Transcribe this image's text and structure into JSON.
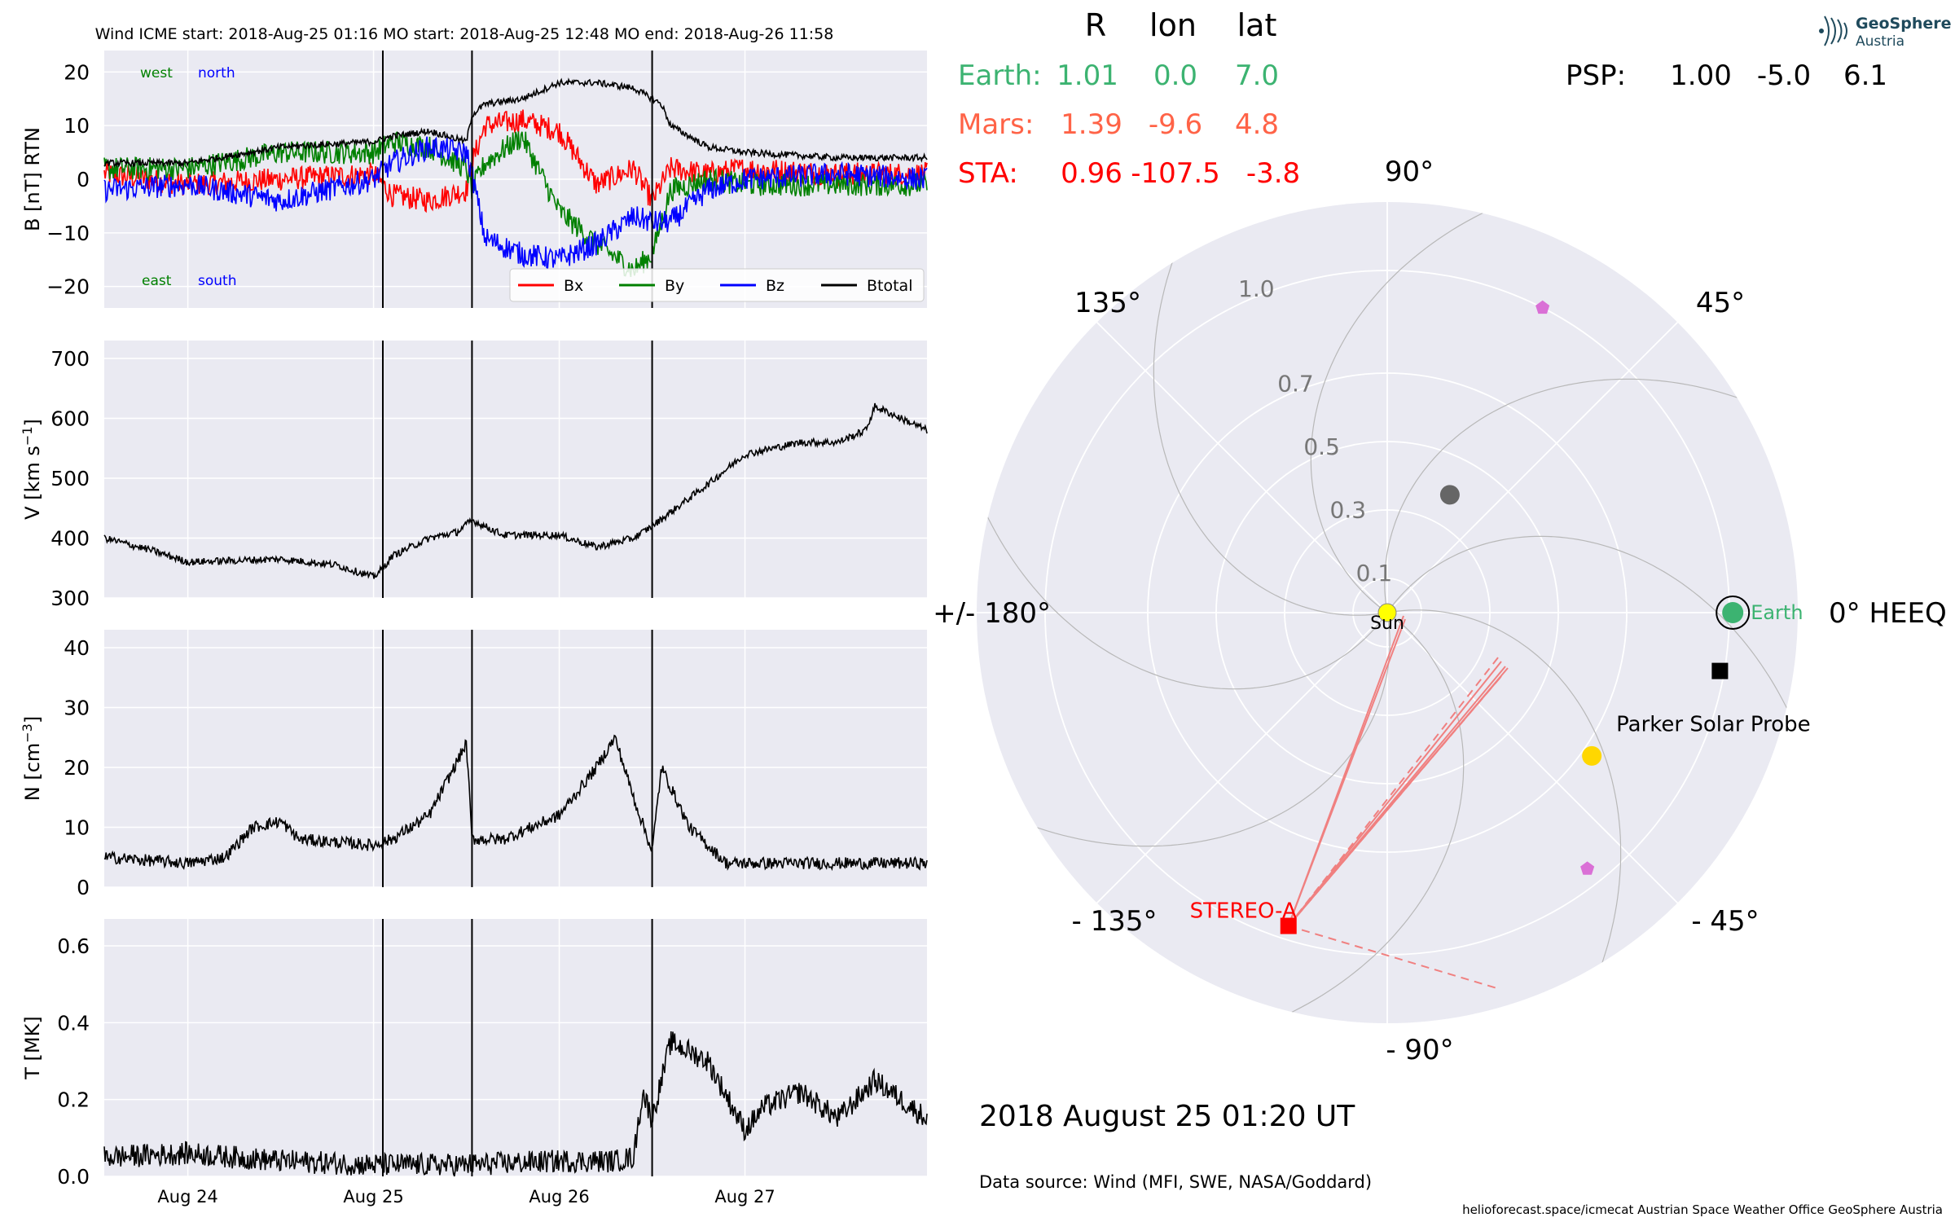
{
  "timeseries": {
    "header": "Wind    ICME start: 2018-Aug-25 01:16   MO start: 2018-Aug-25 12:48   MO end: 2018-Aug-26 11:58",
    "x_ticks": [
      "Aug 24",
      "Aug 25",
      "Aug 26",
      "Aug 27"
    ],
    "panel_b_notes": {
      "west": "west",
      "north": "north",
      "east": "east",
      "south": "south"
    },
    "colors": {
      "bx": "#ff0000",
      "by": "#008000",
      "bz": "#0000ff",
      "btotal": "#000000",
      "plot_bg": "#eaeaf2"
    }
  },
  "chart_data": [
    {
      "type": "line",
      "ylabel": "B [nT] RTN",
      "ylim": [
        -24,
        24
      ],
      "yticks": [
        "20",
        "10",
        "0",
        "−10",
        "−20"
      ],
      "xlim_days": [
        23.55,
        27.98
      ],
      "events": {
        "icme_start": 25.05,
        "mo_start": 25.53,
        "mo_end": 26.5
      },
      "series": [
        {
          "name": "Bx",
          "color": "#ff0000",
          "x": [
            23.55,
            24.0,
            24.5,
            25.0,
            25.1,
            25.3,
            25.5,
            25.53,
            25.6,
            25.8,
            26.0,
            26.2,
            26.4,
            26.5,
            26.6,
            26.8,
            27.0,
            27.5,
            27.98
          ],
          "y": [
            1,
            -1,
            0,
            1,
            -3,
            -4,
            -2,
            3,
            10,
            11,
            9,
            -1,
            2,
            -4,
            2,
            1,
            2,
            1,
            1
          ]
        },
        {
          "name": "By",
          "color": "#008000",
          "x": [
            23.55,
            24.0,
            24.5,
            25.0,
            25.1,
            25.3,
            25.5,
            25.53,
            25.6,
            25.8,
            26.0,
            26.2,
            26.4,
            26.5,
            26.6,
            26.8,
            27.0,
            27.5,
            27.98
          ],
          "y": [
            2,
            2,
            5,
            5,
            7,
            6,
            2,
            -2,
            3,
            8,
            -6,
            -12,
            -17,
            -14,
            -2,
            0,
            -1,
            -1,
            -1
          ]
        },
        {
          "name": "Bz",
          "color": "#0000ff",
          "x": [
            23.55,
            24.0,
            24.5,
            25.0,
            25.1,
            25.3,
            25.5,
            25.53,
            25.6,
            25.8,
            26.0,
            26.2,
            26.4,
            26.5,
            26.6,
            26.8,
            27.0,
            27.5,
            27.98
          ],
          "y": [
            -2,
            -1,
            -4,
            0,
            3,
            6,
            5,
            1,
            -11,
            -14,
            -15,
            -12,
            -7,
            -8,
            -8,
            -2,
            0,
            1,
            0
          ]
        },
        {
          "name": "Btotal",
          "color": "#000000",
          "x": [
            23.55,
            24.0,
            24.5,
            25.0,
            25.1,
            25.3,
            25.5,
            25.53,
            25.6,
            25.8,
            26.0,
            26.2,
            26.4,
            26.5,
            26.55,
            26.6,
            26.8,
            27.0,
            27.5,
            27.98
          ],
          "y": [
            3,
            3,
            6,
            7,
            8,
            9,
            7,
            12,
            14,
            15,
            18,
            18,
            17,
            15,
            14,
            10,
            6,
            5,
            4,
            4
          ]
        }
      ]
    },
    {
      "type": "line",
      "ylabel": "V [km s",
      "ylabel_sup": "−1",
      "ylabel_end": "]",
      "ylim": [
        300,
        730
      ],
      "yticks": [
        "700",
        "600",
        "500",
        "400",
        "300"
      ],
      "series": [
        {
          "name": "V",
          "color": "#000000",
          "x": [
            23.55,
            23.8,
            24.0,
            24.5,
            24.8,
            25.0,
            25.05,
            25.1,
            25.3,
            25.45,
            25.53,
            25.7,
            26.0,
            26.2,
            26.4,
            26.5,
            26.8,
            27.0,
            27.3,
            27.5,
            27.65,
            27.7,
            27.98
          ],
          "y": [
            400,
            380,
            360,
            365,
            355,
            335,
            350,
            370,
            400,
            410,
            430,
            405,
            405,
            385,
            400,
            420,
            490,
            540,
            560,
            560,
            580,
            620,
            580
          ]
        }
      ]
    },
    {
      "type": "line",
      "ylabel": "N [cm",
      "ylabel_sup": "−3",
      "ylabel_end": "]",
      "ylim": [
        0,
        43
      ],
      "yticks": [
        "40",
        "30",
        "20",
        "10",
        "0"
      ],
      "series": [
        {
          "name": "N",
          "color": "#000000",
          "x": [
            23.55,
            24.0,
            24.2,
            24.35,
            24.5,
            24.6,
            25.0,
            25.1,
            25.3,
            25.4,
            25.5,
            25.53,
            25.7,
            26.0,
            26.2,
            26.3,
            26.4,
            26.5,
            26.55,
            26.7,
            26.9,
            27.2,
            27.5,
            27.98
          ],
          "y": [
            5,
            4,
            5,
            10,
            11,
            8,
            7,
            8,
            12,
            18,
            24,
            8,
            8,
            12,
            20,
            25,
            15,
            6,
            20,
            10,
            4,
            4,
            4,
            4
          ]
        }
      ]
    },
    {
      "type": "line",
      "ylabel": "T [MK]",
      "ylim": [
        0,
        0.67
      ],
      "yticks": [
        "0.6",
        "0.4",
        "0.2",
        "0.0"
      ],
      "series": [
        {
          "name": "T",
          "color": "#000000",
          "x": [
            23.55,
            24.0,
            24.5,
            25.0,
            25.5,
            26.0,
            26.3,
            26.4,
            26.45,
            26.5,
            26.6,
            26.8,
            27.0,
            27.1,
            27.3,
            27.5,
            27.7,
            27.98
          ],
          "y": [
            0.05,
            0.06,
            0.04,
            0.03,
            0.03,
            0.04,
            0.04,
            0.05,
            0.22,
            0.15,
            0.35,
            0.3,
            0.12,
            0.18,
            0.22,
            0.15,
            0.25,
            0.15
          ]
        }
      ]
    },
    {
      "type": "scatter",
      "subtype": "polar",
      "angle_labels": [
        "90°",
        "45°",
        "0° HEEQ",
        "- 45°",
        "- 90°",
        "- 135°",
        "+/- 180°",
        "135°"
      ],
      "radial_labels": [
        "0.1",
        "0.3",
        "0.5",
        "0.7",
        "1.0"
      ],
      "radial_values": [
        0.1,
        0.3,
        0.5,
        0.7,
        1.0
      ],
      "rmax": 1.2,
      "bodies": [
        {
          "name": "Sun",
          "label": "Sun",
          "r": 0.0,
          "lon": 0,
          "color": "#ffff00"
        },
        {
          "name": "Earth",
          "label": "Earth",
          "r": 1.01,
          "lon": 0.0,
          "color": "#3cb371"
        },
        {
          "name": "Mercury",
          "label": "",
          "r": 0.39,
          "lon": 62,
          "color": "#666666"
        },
        {
          "name": "Venus",
          "label": "",
          "r": 0.73,
          "lon": -35,
          "color": "#ffd700"
        },
        {
          "name": "Parker Solar Probe",
          "label": "Parker Solar Probe",
          "r": 1.0,
          "lon": -5.0,
          "color": "#000000"
        },
        {
          "name": "STEREO-A",
          "label": "STEREO-A",
          "r": 0.96,
          "lon": -107.5,
          "color": "#ff0000"
        },
        {
          "name": "pink-marker-1",
          "label": "",
          "r": 1.0,
          "lon": 63,
          "color": "#da70d6"
        },
        {
          "name": "pink-marker-2",
          "label": "",
          "r": 0.95,
          "lon": -52,
          "color": "#da70d6"
        }
      ],
      "positions": {
        "headers": [
          "R",
          "lon",
          "lat"
        ],
        "earth": {
          "label": "Earth:",
          "r": "1.01",
          "lon": "0.0",
          "lat": "7.0",
          "color": "#3cb371"
        },
        "mars": {
          "label": "Mars:",
          "r": "1.39",
          "lon": "-9.6",
          "lat": "4.8",
          "color": "#ff6347"
        },
        "sta": {
          "label": "STA:",
          "r": "0.96",
          "lon": "-107.5",
          "lat": "-3.8",
          "color": "#ff0000"
        },
        "psp": {
          "label": "PSP:",
          "r": "1.00",
          "lon": "-5.0",
          "lat": "6.1"
        }
      }
    }
  ],
  "info": {
    "datetime": "2018 August 25  01:20 UT",
    "data_source": "Data source: Wind (MFI, SWE, NASA/Goddard)",
    "footer": "helioforecast.space/icmecat   Austrian Space Weather Office   GeoSphere Austria",
    "logo_line1": "GeoSphere",
    "logo_line2": "Austria"
  }
}
